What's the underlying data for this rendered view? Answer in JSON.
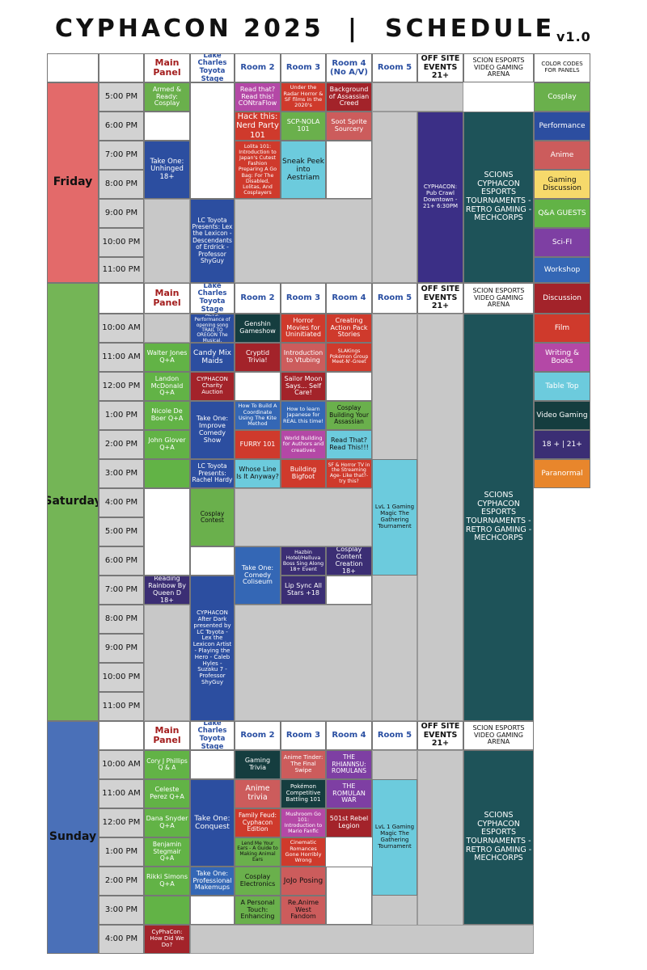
{
  "page_title": "CYPHACON 2025",
  "separator": "|",
  "page_subtitle": "SCHEDULE",
  "version": "v1.0",
  "columns": {
    "main_panel": "Main Panel",
    "lake_charles": "Lake Charles Toyota Stage",
    "room2": "Room 2",
    "room3": "Room 3",
    "room4": "Room 4",
    "room4_fri": "Room 4 (No A/V)",
    "room5": "Room 5",
    "offsite": "OFF SITE EVENTS 21+",
    "scion": "SCION ESPORTS VIDEO GAMING ARENA",
    "color_codes": "COLOR CODES FOR PANELS"
  },
  "colors": {
    "cosplay": "#6ab04c",
    "performance": "#2c4ea0",
    "anime": "#cc5c5c",
    "gaming_discussion": "#f6d96b",
    "qa_guests": "#62b346",
    "scifi": "#7e3fa3",
    "workshop": "#3467b5",
    "discussion": "#a3232a",
    "film": "#cf3a2c",
    "writing_books": "#b448a6",
    "table_top": "#6ccbdd",
    "video_gaming": "#153d3f",
    "age": "#3b2e74",
    "paranormal": "#e8862c",
    "friday": "#e36a6a",
    "saturday": "#74b556",
    "sunday": "#4a70b8",
    "offsite_purple": "#3b2f86",
    "scion_teal": "#1e5359"
  },
  "days": {
    "friday": "Friday",
    "saturday": "Saturday",
    "sunday": "Sunday"
  },
  "times": {
    "friday": [
      "5:00 PM",
      "6:00 PM",
      "7:00 PM",
      "8:00 PM",
      "9:00 PM",
      "10:00 PM",
      "11:00 PM"
    ],
    "saturday": [
      "10:00 AM",
      "11:00 AM",
      "12:00 PM",
      "1:00 PM",
      "2:00 PM",
      "3:00 PM",
      "4:00 PM",
      "5:00 PM",
      "6:00 PM",
      "7:00 PM",
      "8:00 PM",
      "9:00 PM",
      "10:00 PM",
      "11:00 PM"
    ],
    "sunday": [
      "10:00 AM",
      "11:00 AM",
      "12:00 PM",
      "1:00 PM",
      "2:00 PM",
      "3:00 PM",
      "4:00 PM"
    ]
  },
  "legend": [
    "Cosplay",
    "Performance",
    "Anime",
    "Gaming Discussion",
    "Q&A GUESTS",
    "Sci-FI",
    "Workshop",
    "Discussion",
    "Film",
    "Writing & Books",
    "Table Top",
    "Video Gaming",
    "18 + | 21+",
    "Paranormal"
  ],
  "friday": {
    "armed_ready": "Armed & Ready: Cosplay",
    "read_that": "Read that? Read this! CONtraFlow",
    "under_radar": "Under the Radar Horror & SF films in the 2020's",
    "assassin_creed": "Background of Assassian Creed",
    "hack_this": "Hack this: Nerd Party 101",
    "lolita": "Lolita 101: Introduction to Japan's Cutest Fashion Preparing A Go Bag: For The Disabled, Lolitas, And Cosplayers",
    "scp_nola": "SCP-NOLA 101",
    "soot_sprite": "Soot Sprite Sourcery",
    "take_one_unhinged": "Take One: Unhinged 18+",
    "sneak_peek": "Sneak Peek into Aestriam",
    "lc_toyota_lex": "LC Toyota Presents: Lex the Lexicon - Descendants of Erdrick - Professor ShyGuy",
    "pub_crawl": "CYPHACON: Pub Crawl Downtown - 21+ 6:30PM",
    "scion": "SCIONS CYPHACON ESPORTS TOURNAMENTS - RETRO GAMING - MECHCORPS"
  },
  "saturday": {
    "acts": "ACTS: Performance of opening song TRAIL TO OREGON The Musical.",
    "genshin": "Genshin Gameshow",
    "horror_movies": "Horror Movies for Uninitiated",
    "action_pack": "Creating Action Pack Stories",
    "walter": "Walter Jones Q+A",
    "candy_mix": "Candy Mix Maids",
    "cryptid": "Cryptid Trivia!",
    "vtubing": "Introduction to Vtubing",
    "slakings": "SLAKings Pokémon Group Meet-N'-Greet",
    "landon": "Landon McDonald Q+A",
    "charity": "CYPHACON Charity Auction",
    "sailor_moon": "Sailor Moon Says... Self Care!",
    "nicole": "Nicole De Boer Q+A",
    "improve": "Take One: Improve Comedy Show",
    "kite": "How To Build A Coordinate Using The Kite Method",
    "japanese": "How to learn Japanese for REAL this time!",
    "cosplay_build": "Cosplay Building Your Assassian",
    "john": "John Glover Q+A",
    "furry": "FURRY 101",
    "world_building": "World Building for Authors and creatives",
    "read_that": "Read That? Read This!!!",
    "rachel": "LC Toyota Presents: Rachel Hardy",
    "whose_line": "Whose Line Is It Anyway?",
    "bigfoot": "Building Bigfoot",
    "sf_horror": "SF & Horror TV in the Streaming Age- Like that?- try this?",
    "lvl1": "LvL 1 Gaming Magic The Gathering Tournament",
    "cosplay_contest": "Cosplay Contest",
    "hazbin": "Hazbin Hotel/Helluva Boss Sing Along 18+ Event",
    "content_creation": "Cosplay Content Creation 18+",
    "coliseum": "Take One: Comedy Coliseum",
    "reading_rainbow": "Reading Rainbow By Queen D 18+",
    "lip_sync": "Lip Sync All Stars +18",
    "after_dark": "CYPHACON After Dark presented by LC Toyota - Lex the Lexicon Artist - Playing the Hero - Caleb Hyles - Suzaku 7 - Professor ShyGuy",
    "scion": "SCIONS CYPHACON ESPORTS TOURNAMENTS - RETRO GAMING - MECHCORPS"
  },
  "sunday": {
    "cory": "Cory J Phillips Q & A",
    "gaming_trivia": "Gaming Trivia",
    "anime_tinder": "Anime Tinder: The Final Swipe",
    "rhiannsu": "THE RHIANNSU: ROMULANS",
    "celeste": "Celeste Perez Q+A",
    "conquest": "Take One: Conquest",
    "anime_trivia": "Anime trivia",
    "pokemon": "Pokémon Competitive Battling 101",
    "romulan_war": "THE ROMULAN WAR",
    "dana": "Dana Snyder Q+A",
    "family_feud": "Family Feud: Cyphacon Edition",
    "mushroom": "Mushroom Go 101: Introduction to Mario Fanfic",
    "rebel": "501st Rebel Legion",
    "benjamin": "Benjamin Stegmair Q+A",
    "lend_ears": "Lend Me Your Ears - A Guide to Making Animal Ears",
    "cinematic": "Cinematic Romances Gone Horribly Wrong",
    "rikki": "Rikki Simons Q+A",
    "makeups": "Take One: Professional Makemups",
    "electronics": "Cosplay Electronics",
    "jojo": "JoJo Posing",
    "personal": "A Personal Touch: Enhancing",
    "reanime": "Re.Anime West Fandom",
    "how_did": "CyPhaCon: How Did We Do?",
    "lvl1": "LvL 1 Gaming Magic The Gathering Tournament",
    "scion": "SCIONS CYPHACON ESPORTS TOURNAMENTS - RETRO GAMING - MECHCORPS"
  }
}
